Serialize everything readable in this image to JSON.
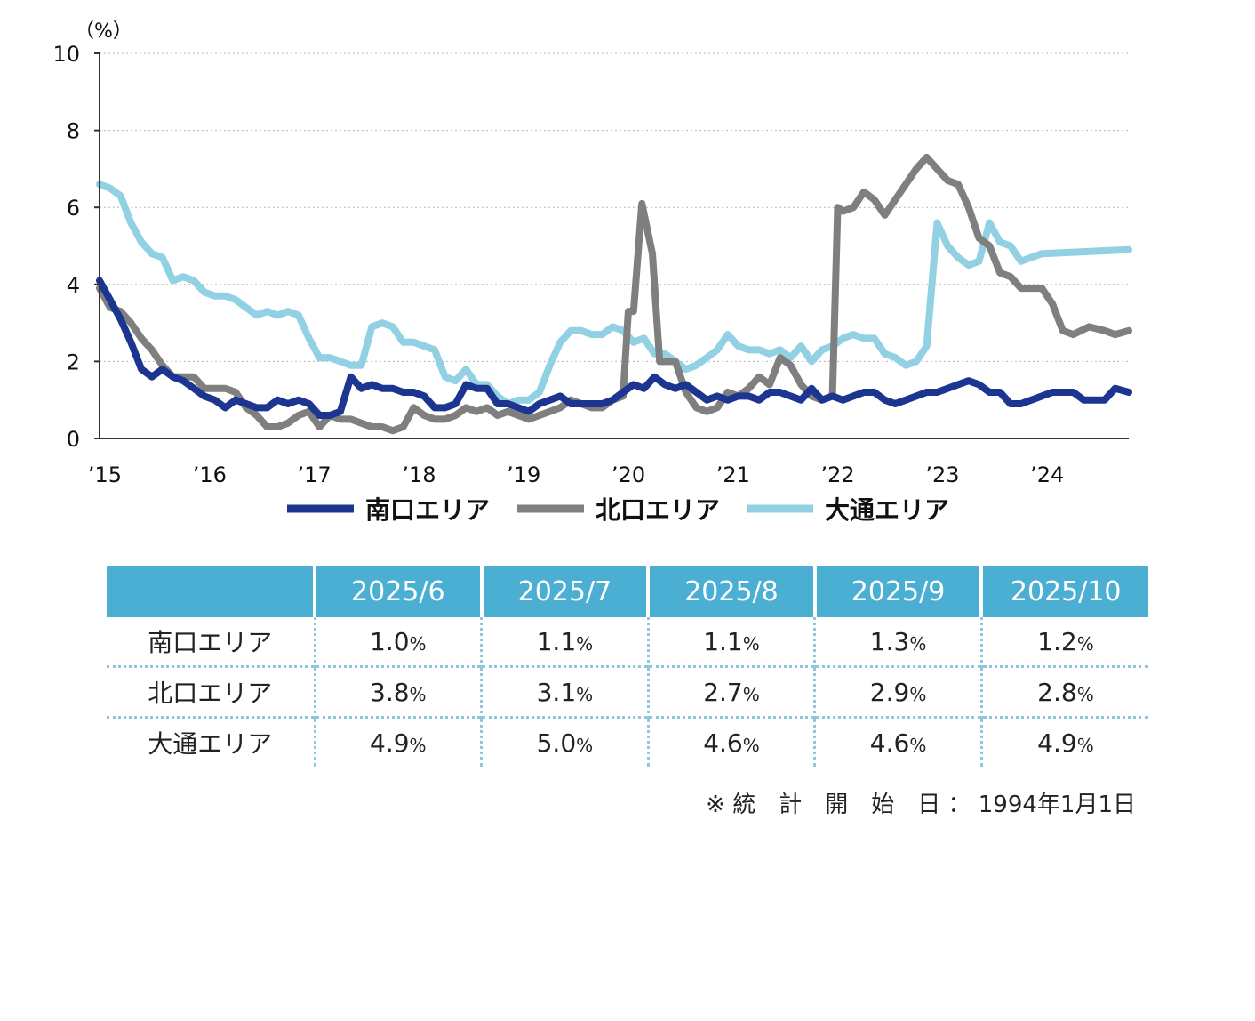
{
  "chart_data": {
    "type": "line",
    "y_unit": "（%）",
    "ylim": [
      0,
      10
    ],
    "y_ticks": [
      "0",
      "2",
      "4",
      "6",
      "8",
      "10"
    ],
    "x_ticks": [
      "’15",
      "’16",
      "’17",
      "’18",
      "’19",
      "’20",
      "’21",
      "’22",
      "’23",
      "’24"
    ],
    "x_range": [
      2015.0,
      2024.83
    ],
    "grid": "horizontal-dotted",
    "legend_position": "bottom",
    "series": [
      {
        "name": "南口エリア",
        "color": "#1c3591",
        "points": [
          [
            2015.0,
            4.1
          ],
          [
            2015.1,
            3.6
          ],
          [
            2015.2,
            3.1
          ],
          [
            2015.3,
            2.5
          ],
          [
            2015.4,
            1.8
          ],
          [
            2015.5,
            1.6
          ],
          [
            2015.6,
            1.8
          ],
          [
            2015.7,
            1.6
          ],
          [
            2015.8,
            1.5
          ],
          [
            2015.9,
            1.3
          ],
          [
            2016.0,
            1.1
          ],
          [
            2016.1,
            1.0
          ],
          [
            2016.2,
            0.8
          ],
          [
            2016.3,
            1.0
          ],
          [
            2016.4,
            0.9
          ],
          [
            2016.5,
            0.8
          ],
          [
            2016.6,
            0.8
          ],
          [
            2016.7,
            1.0
          ],
          [
            2016.8,
            0.9
          ],
          [
            2016.9,
            1.0
          ],
          [
            2017.0,
            0.9
          ],
          [
            2017.1,
            0.6
          ],
          [
            2017.2,
            0.6
          ],
          [
            2017.3,
            0.7
          ],
          [
            2017.4,
            1.6
          ],
          [
            2017.5,
            1.3
          ],
          [
            2017.6,
            1.4
          ],
          [
            2017.7,
            1.3
          ],
          [
            2017.8,
            1.3
          ],
          [
            2017.9,
            1.2
          ],
          [
            2018.0,
            1.2
          ],
          [
            2018.1,
            1.1
          ],
          [
            2018.2,
            0.8
          ],
          [
            2018.3,
            0.8
          ],
          [
            2018.4,
            0.9
          ],
          [
            2018.5,
            1.4
          ],
          [
            2018.6,
            1.3
          ],
          [
            2018.7,
            1.3
          ],
          [
            2018.8,
            0.9
          ],
          [
            2018.9,
            0.9
          ],
          [
            2019.0,
            0.8
          ],
          [
            2019.1,
            0.7
          ],
          [
            2019.2,
            0.9
          ],
          [
            2019.3,
            1.0
          ],
          [
            2019.4,
            1.1
          ],
          [
            2019.5,
            0.9
          ],
          [
            2019.6,
            0.9
          ],
          [
            2019.7,
            0.9
          ],
          [
            2019.8,
            0.9
          ],
          [
            2019.9,
            1.0
          ],
          [
            2020.0,
            1.2
          ],
          [
            2020.1,
            1.4
          ],
          [
            2020.2,
            1.3
          ],
          [
            2020.3,
            1.6
          ],
          [
            2020.4,
            1.4
          ],
          [
            2020.5,
            1.3
          ],
          [
            2020.6,
            1.4
          ],
          [
            2020.7,
            1.2
          ],
          [
            2020.8,
            1.0
          ],
          [
            2020.9,
            1.1
          ],
          [
            2021.0,
            1.0
          ],
          [
            2021.1,
            1.1
          ],
          [
            2021.2,
            1.1
          ],
          [
            2021.3,
            1.0
          ],
          [
            2021.4,
            1.2
          ],
          [
            2021.5,
            1.2
          ],
          [
            2021.6,
            1.1
          ],
          [
            2021.7,
            1.0
          ],
          [
            2021.8,
            1.3
          ],
          [
            2021.9,
            1.0
          ],
          [
            2022.0,
            1.1
          ],
          [
            2022.1,
            1.0
          ],
          [
            2022.2,
            1.1
          ],
          [
            2022.3,
            1.2
          ],
          [
            2022.4,
            1.2
          ],
          [
            2022.5,
            1.0
          ],
          [
            2022.6,
            0.9
          ],
          [
            2022.7,
            1.0
          ],
          [
            2022.8,
            1.1
          ],
          [
            2022.9,
            1.2
          ],
          [
            2023.0,
            1.2
          ],
          [
            2023.1,
            1.3
          ],
          [
            2023.2,
            1.4
          ],
          [
            2023.3,
            1.5
          ],
          [
            2023.4,
            1.4
          ],
          [
            2023.5,
            1.2
          ],
          [
            2023.6,
            1.2
          ],
          [
            2023.7,
            0.9
          ],
          [
            2023.8,
            0.9
          ],
          [
            2023.9,
            1.0
          ],
          [
            2024.0,
            1.1
          ],
          [
            2024.1,
            1.2
          ],
          [
            2024.2,
            1.2
          ],
          [
            2024.3,
            1.2
          ],
          [
            2024.4,
            1.0
          ],
          [
            2024.5,
            1.0
          ],
          [
            2024.6,
            1.0
          ],
          [
            2024.7,
            1.3
          ],
          [
            2024.83,
            1.2
          ]
        ]
      },
      {
        "name": "北口エリア",
        "color": "#7f7f7f",
        "points": [
          [
            2015.0,
            3.9
          ],
          [
            2015.1,
            3.4
          ],
          [
            2015.2,
            3.3
          ],
          [
            2015.3,
            3.0
          ],
          [
            2015.4,
            2.6
          ],
          [
            2015.5,
            2.3
          ],
          [
            2015.6,
            1.9
          ],
          [
            2015.7,
            1.6
          ],
          [
            2015.8,
            1.6
          ],
          [
            2015.9,
            1.6
          ],
          [
            2016.0,
            1.3
          ],
          [
            2016.1,
            1.3
          ],
          [
            2016.2,
            1.3
          ],
          [
            2016.3,
            1.2
          ],
          [
            2016.4,
            0.8
          ],
          [
            2016.5,
            0.6
          ],
          [
            2016.6,
            0.3
          ],
          [
            2016.7,
            0.3
          ],
          [
            2016.8,
            0.4
          ],
          [
            2016.9,
            0.6
          ],
          [
            2017.0,
            0.7
          ],
          [
            2017.1,
            0.3
          ],
          [
            2017.2,
            0.6
          ],
          [
            2017.3,
            0.5
          ],
          [
            2017.4,
            0.5
          ],
          [
            2017.5,
            0.4
          ],
          [
            2017.6,
            0.3
          ],
          [
            2017.7,
            0.3
          ],
          [
            2017.8,
            0.2
          ],
          [
            2017.9,
            0.3
          ],
          [
            2018.0,
            0.8
          ],
          [
            2018.1,
            0.6
          ],
          [
            2018.2,
            0.5
          ],
          [
            2018.3,
            0.5
          ],
          [
            2018.4,
            0.6
          ],
          [
            2018.5,
            0.8
          ],
          [
            2018.6,
            0.7
          ],
          [
            2018.7,
            0.8
          ],
          [
            2018.8,
            0.6
          ],
          [
            2018.9,
            0.7
          ],
          [
            2019.0,
            0.6
          ],
          [
            2019.1,
            0.5
          ],
          [
            2019.2,
            0.6
          ],
          [
            2019.3,
            0.7
          ],
          [
            2019.4,
            0.8
          ],
          [
            2019.5,
            1.0
          ],
          [
            2019.6,
            0.9
          ],
          [
            2019.7,
            0.8
          ],
          [
            2019.8,
            0.8
          ],
          [
            2019.9,
            1.0
          ],
          [
            2020.0,
            1.1
          ],
          [
            2020.05,
            3.3
          ],
          [
            2020.1,
            3.3
          ],
          [
            2020.18,
            6.1
          ],
          [
            2020.28,
            4.8
          ],
          [
            2020.35,
            2.0
          ],
          [
            2020.5,
            2.0
          ],
          [
            2020.6,
            1.2
          ],
          [
            2020.7,
            0.8
          ],
          [
            2020.8,
            0.7
          ],
          [
            2020.9,
            0.8
          ],
          [
            2021.0,
            1.2
          ],
          [
            2021.1,
            1.1
          ],
          [
            2021.2,
            1.3
          ],
          [
            2021.3,
            1.6
          ],
          [
            2021.4,
            1.4
          ],
          [
            2021.5,
            2.1
          ],
          [
            2021.6,
            1.9
          ],
          [
            2021.7,
            1.4
          ],
          [
            2021.8,
            1.1
          ],
          [
            2021.9,
            1.0
          ],
          [
            2022.0,
            1.1
          ],
          [
            2022.05,
            6.0
          ],
          [
            2022.1,
            5.9
          ],
          [
            2022.2,
            6.0
          ],
          [
            2022.3,
            6.4
          ],
          [
            2022.4,
            6.2
          ],
          [
            2022.5,
            5.8
          ],
          [
            2022.6,
            6.2
          ],
          [
            2022.7,
            6.6
          ],
          [
            2022.8,
            7.0
          ],
          [
            2022.9,
            7.3
          ],
          [
            2023.0,
            7.0
          ],
          [
            2023.1,
            6.7
          ],
          [
            2023.2,
            6.6
          ],
          [
            2023.3,
            6.0
          ],
          [
            2023.4,
            5.2
          ],
          [
            2023.5,
            5.0
          ],
          [
            2023.6,
            4.3
          ],
          [
            2023.7,
            4.2
          ],
          [
            2023.8,
            3.9
          ],
          [
            2023.9,
            3.9
          ],
          [
            2024.0,
            3.9
          ],
          [
            2024.1,
            3.5
          ],
          [
            2024.2,
            2.8
          ],
          [
            2024.3,
            2.7
          ],
          [
            2024.45,
            2.9
          ],
          [
            2024.6,
            2.8
          ],
          [
            2024.7,
            2.7
          ],
          [
            2024.83,
            2.8
          ]
        ]
      },
      {
        "name": "大通エリア",
        "color": "#92d0e4",
        "points": [
          [
            2015.0,
            6.6
          ],
          [
            2015.1,
            6.5
          ],
          [
            2015.2,
            6.3
          ],
          [
            2015.3,
            5.6
          ],
          [
            2015.4,
            5.1
          ],
          [
            2015.5,
            4.8
          ],
          [
            2015.6,
            4.7
          ],
          [
            2015.7,
            4.1
          ],
          [
            2015.8,
            4.2
          ],
          [
            2015.9,
            4.1
          ],
          [
            2016.0,
            3.8
          ],
          [
            2016.1,
            3.7
          ],
          [
            2016.2,
            3.7
          ],
          [
            2016.3,
            3.6
          ],
          [
            2016.4,
            3.4
          ],
          [
            2016.5,
            3.2
          ],
          [
            2016.6,
            3.3
          ],
          [
            2016.7,
            3.2
          ],
          [
            2016.8,
            3.3
          ],
          [
            2016.9,
            3.2
          ],
          [
            2017.0,
            2.6
          ],
          [
            2017.1,
            2.1
          ],
          [
            2017.2,
            2.1
          ],
          [
            2017.3,
            2.0
          ],
          [
            2017.4,
            1.9
          ],
          [
            2017.5,
            1.9
          ],
          [
            2017.6,
            2.9
          ],
          [
            2017.7,
            3.0
          ],
          [
            2017.8,
            2.9
          ],
          [
            2017.9,
            2.5
          ],
          [
            2018.0,
            2.5
          ],
          [
            2018.1,
            2.4
          ],
          [
            2018.2,
            2.3
          ],
          [
            2018.3,
            1.6
          ],
          [
            2018.4,
            1.5
          ],
          [
            2018.5,
            1.8
          ],
          [
            2018.6,
            1.4
          ],
          [
            2018.7,
            1.4
          ],
          [
            2018.8,
            1.1
          ],
          [
            2018.9,
            0.9
          ],
          [
            2019.0,
            1.0
          ],
          [
            2019.1,
            1.0
          ],
          [
            2019.2,
            1.2
          ],
          [
            2019.3,
            1.9
          ],
          [
            2019.4,
            2.5
          ],
          [
            2019.5,
            2.8
          ],
          [
            2019.6,
            2.8
          ],
          [
            2019.7,
            2.7
          ],
          [
            2019.8,
            2.7
          ],
          [
            2019.9,
            2.9
          ],
          [
            2020.0,
            2.8
          ],
          [
            2020.1,
            2.5
          ],
          [
            2020.2,
            2.6
          ],
          [
            2020.3,
            2.2
          ],
          [
            2020.4,
            2.2
          ],
          [
            2020.5,
            2.0
          ],
          [
            2020.6,
            1.8
          ],
          [
            2020.7,
            1.9
          ],
          [
            2020.8,
            2.1
          ],
          [
            2020.9,
            2.3
          ],
          [
            2021.0,
            2.7
          ],
          [
            2021.1,
            2.4
          ],
          [
            2021.2,
            2.3
          ],
          [
            2021.3,
            2.3
          ],
          [
            2021.4,
            2.2
          ],
          [
            2021.5,
            2.3
          ],
          [
            2021.6,
            2.1
          ],
          [
            2021.7,
            2.4
          ],
          [
            2021.8,
            2.0
          ],
          [
            2021.9,
            2.3
          ],
          [
            2022.0,
            2.4
          ],
          [
            2022.1,
            2.6
          ],
          [
            2022.2,
            2.7
          ],
          [
            2022.3,
            2.6
          ],
          [
            2022.4,
            2.6
          ],
          [
            2022.5,
            2.2
          ],
          [
            2022.6,
            2.1
          ],
          [
            2022.7,
            1.9
          ],
          [
            2022.8,
            2.0
          ],
          [
            2022.9,
            2.4
          ],
          [
            2023.0,
            5.6
          ],
          [
            2023.1,
            5.0
          ],
          [
            2023.2,
            4.7
          ],
          [
            2023.3,
            4.5
          ],
          [
            2023.4,
            4.6
          ],
          [
            2023.5,
            5.6
          ],
          [
            2023.6,
            5.1
          ],
          [
            2023.7,
            5.0
          ],
          [
            2023.8,
            4.6
          ],
          [
            2023.9,
            4.7
          ],
          [
            2024.0,
            4.8
          ],
          [
            2024.83,
            4.9
          ]
        ]
      }
    ]
  },
  "table": {
    "headers": [
      "",
      "2025/6",
      "2025/7",
      "2025/8",
      "2025/9",
      "2025/10"
    ],
    "rows": [
      {
        "label": "南口エリア",
        "values": [
          "1.0",
          "1.1",
          "1.1",
          "1.3",
          "1.2"
        ]
      },
      {
        "label": "北口エリア",
        "values": [
          "3.8",
          "3.1",
          "2.7",
          "2.9",
          "2.8"
        ]
      },
      {
        "label": "大通エリア",
        "values": [
          "4.9",
          "5.0",
          "4.6",
          "4.6",
          "4.9"
        ]
      }
    ],
    "unit": "%"
  },
  "note": "※ 統　計　開　始　日 ： 1994年1月1日"
}
